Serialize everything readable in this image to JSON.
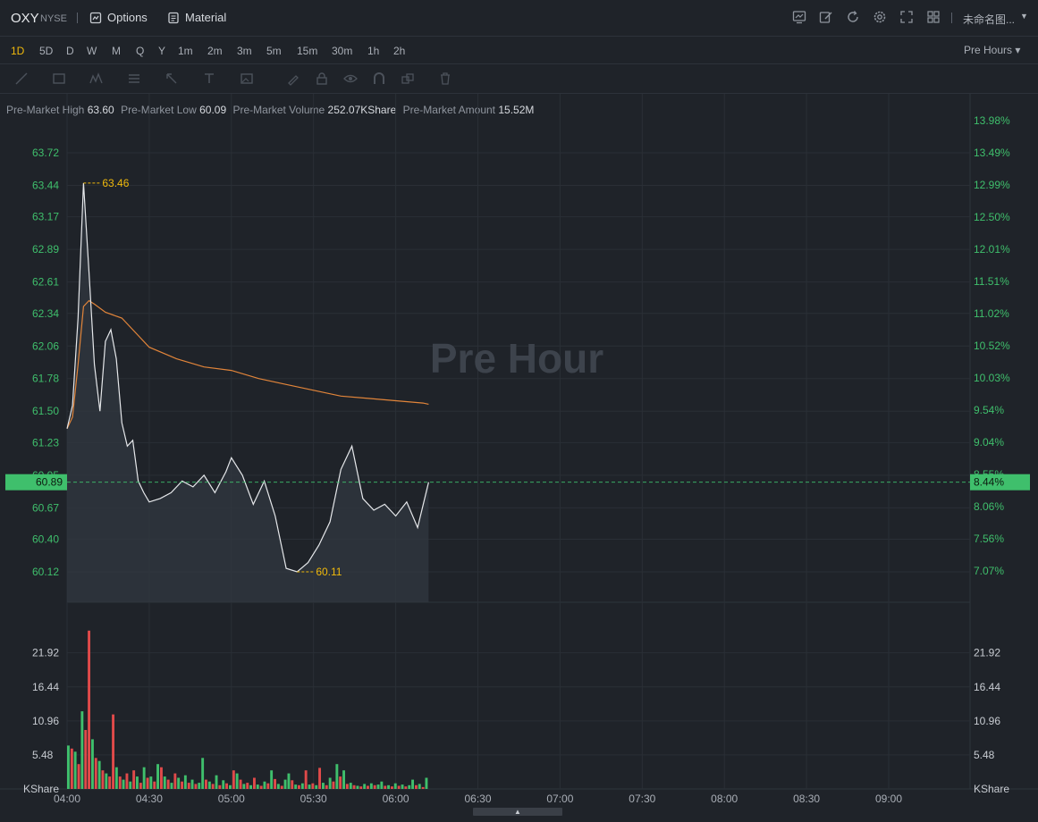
{
  "header": {
    "symbol": "OXY",
    "exchange": "NYSE",
    "options_label": "Options",
    "material_label": "Material",
    "layout_name": "未命名图..."
  },
  "periods": [
    "1D",
    "5D",
    "D",
    "W",
    "M",
    "Q",
    "Y",
    "1m",
    "2m",
    "3m",
    "5m",
    "15m",
    "30m",
    "1h",
    "2h"
  ],
  "active_period": "1D",
  "session_select": "Pre Hours",
  "info": {
    "high_label": "Pre-Market High",
    "high": "63.60",
    "low_label": "Pre-Market Low",
    "low": "60.09",
    "volume_label": "Pre-Market Volume",
    "volume": "252.07KShare",
    "amount_label": "Pre-Market Amount",
    "amount": "15.52M"
  },
  "watermark": "Pre Hour",
  "colors": {
    "up": "#3fbf6c",
    "down": "#e04a4a",
    "avg": "#e2853a",
    "price": "#e6e8eb",
    "marker": "#f0b90b",
    "bg": "#1f2329"
  },
  "chart_data": {
    "type": "line",
    "x_ticks": [
      "04:00",
      "04:30",
      "05:00",
      "05:30",
      "06:00",
      "06:30",
      "07:00",
      "07:30",
      "08:00",
      "08:30",
      "09:00"
    ],
    "y_ticks": [
      "63.72",
      "63.44",
      "63.17",
      "62.89",
      "62.61",
      "62.34",
      "62.06",
      "61.78",
      "61.50",
      "61.23",
      "60.95",
      "60.67",
      "60.40",
      "60.12"
    ],
    "pct_ticks": [
      "13.98%",
      "13.49%",
      "12.99%",
      "12.50%",
      "12.01%",
      "11.51%",
      "11.02%",
      "10.52%",
      "10.03%",
      "9.54%",
      "9.04%",
      "8.55%",
      "8.06%",
      "7.56%",
      "7.07%"
    ],
    "current_price": "60.89",
    "current_pct": "8.44%",
    "high_marker": "63.46",
    "low_marker": "60.11",
    "price_series": {
      "name": "Price",
      "x": [
        "04:00",
        "04:02",
        "04:04",
        "04:06",
        "04:08",
        "04:10",
        "04:12",
        "04:14",
        "04:16",
        "04:18",
        "04:20",
        "04:22",
        "04:24",
        "04:26",
        "04:28",
        "04:30",
        "04:34",
        "04:38",
        "04:42",
        "04:46",
        "04:50",
        "04:54",
        "04:58",
        "05:00",
        "05:04",
        "05:08",
        "05:12",
        "05:16",
        "05:20",
        "05:24",
        "05:28",
        "05:32",
        "05:36",
        "05:40",
        "05:44",
        "05:48",
        "05:52",
        "05:56",
        "06:00",
        "06:04",
        "06:08",
        "06:12"
      ],
      "y": [
        61.35,
        61.55,
        62.3,
        63.46,
        62.7,
        61.9,
        61.5,
        62.1,
        62.2,
        61.95,
        61.4,
        61.2,
        61.25,
        60.9,
        60.8,
        60.72,
        60.75,
        60.8,
        60.9,
        60.85,
        60.95,
        60.8,
        60.98,
        61.1,
        60.95,
        60.7,
        60.9,
        60.6,
        60.15,
        60.12,
        60.2,
        60.35,
        60.55,
        61.0,
        61.2,
        60.75,
        60.65,
        60.7,
        60.6,
        60.72,
        60.5,
        60.89
      ]
    },
    "avg_series": {
      "name": "Average",
      "x": [
        "04:00",
        "04:02",
        "04:04",
        "04:06",
        "04:08",
        "04:10",
        "04:14",
        "04:20",
        "04:26",
        "04:30",
        "04:40",
        "04:50",
        "05:00",
        "05:10",
        "05:20",
        "05:30",
        "05:40",
        "05:50",
        "06:00",
        "06:10",
        "06:12"
      ],
      "y": [
        61.35,
        61.45,
        61.9,
        62.4,
        62.45,
        62.42,
        62.35,
        62.3,
        62.15,
        62.05,
        61.95,
        61.88,
        61.85,
        61.78,
        61.73,
        61.68,
        61.63,
        61.61,
        61.59,
        61.57,
        61.56
      ]
    },
    "volume_ticks": [
      "21.92",
      "16.44",
      "10.96",
      "5.48"
    ],
    "volume_unit": "KShare",
    "volume_bars": [
      {
        "v": 7.0,
        "c": "up"
      },
      {
        "v": 6.5,
        "c": "down"
      },
      {
        "v": 6.0,
        "c": "up"
      },
      {
        "v": 4.0,
        "c": "down"
      },
      {
        "v": 12.5,
        "c": "up"
      },
      {
        "v": 9.5,
        "c": "down"
      },
      {
        "v": 25.5,
        "c": "down"
      },
      {
        "v": 8.0,
        "c": "up"
      },
      {
        "v": 5.0,
        "c": "down"
      },
      {
        "v": 4.5,
        "c": "up"
      },
      {
        "v": 3.0,
        "c": "down"
      },
      {
        "v": 2.5,
        "c": "up"
      },
      {
        "v": 2.0,
        "c": "down"
      },
      {
        "v": 12.0,
        "c": "down"
      },
      {
        "v": 3.5,
        "c": "up"
      },
      {
        "v": 2.0,
        "c": "down"
      },
      {
        "v": 1.5,
        "c": "up"
      },
      {
        "v": 2.5,
        "c": "down"
      },
      {
        "v": 1.2,
        "c": "up"
      },
      {
        "v": 3.0,
        "c": "down"
      },
      {
        "v": 2.0,
        "c": "up"
      },
      {
        "v": 1.0,
        "c": "down"
      },
      {
        "v": 3.5,
        "c": "up"
      },
      {
        "v": 1.8,
        "c": "down"
      },
      {
        "v": 2.0,
        "c": "up"
      },
      {
        "v": 1.2,
        "c": "down"
      },
      {
        "v": 4.0,
        "c": "up"
      },
      {
        "v": 3.5,
        "c": "down"
      },
      {
        "v": 2.0,
        "c": "up"
      },
      {
        "v": 1.5,
        "c": "down"
      },
      {
        "v": 1.0,
        "c": "up"
      },
      {
        "v": 2.5,
        "c": "down"
      },
      {
        "v": 1.8,
        "c": "up"
      },
      {
        "v": 1.2,
        "c": "down"
      },
      {
        "v": 2.2,
        "c": "up"
      },
      {
        "v": 1.0,
        "c": "down"
      },
      {
        "v": 1.5,
        "c": "up"
      },
      {
        "v": 0.8,
        "c": "down"
      },
      {
        "v": 1.0,
        "c": "up"
      },
      {
        "v": 5.0,
        "c": "up"
      },
      {
        "v": 1.5,
        "c": "down"
      },
      {
        "v": 1.2,
        "c": "up"
      },
      {
        "v": 0.8,
        "c": "down"
      },
      {
        "v": 2.2,
        "c": "up"
      },
      {
        "v": 0.6,
        "c": "down"
      },
      {
        "v": 1.4,
        "c": "up"
      },
      {
        "v": 0.9,
        "c": "down"
      },
      {
        "v": 0.6,
        "c": "up"
      },
      {
        "v": 3.0,
        "c": "down"
      },
      {
        "v": 2.5,
        "c": "up"
      },
      {
        "v": 1.5,
        "c": "down"
      },
      {
        "v": 0.8,
        "c": "up"
      },
      {
        "v": 1.0,
        "c": "down"
      },
      {
        "v": 0.6,
        "c": "up"
      },
      {
        "v": 1.8,
        "c": "down"
      },
      {
        "v": 0.7,
        "c": "up"
      },
      {
        "v": 0.5,
        "c": "down"
      },
      {
        "v": 1.2,
        "c": "up"
      },
      {
        "v": 0.9,
        "c": "down"
      },
      {
        "v": 3.0,
        "c": "up"
      },
      {
        "v": 1.6,
        "c": "down"
      },
      {
        "v": 0.8,
        "c": "up"
      },
      {
        "v": 0.5,
        "c": "down"
      },
      {
        "v": 1.5,
        "c": "up"
      },
      {
        "v": 2.5,
        "c": "up"
      },
      {
        "v": 1.4,
        "c": "down"
      },
      {
        "v": 0.7,
        "c": "up"
      },
      {
        "v": 0.6,
        "c": "down"
      },
      {
        "v": 0.9,
        "c": "up"
      },
      {
        "v": 3.0,
        "c": "down"
      },
      {
        "v": 0.7,
        "c": "up"
      },
      {
        "v": 0.9,
        "c": "down"
      },
      {
        "v": 0.6,
        "c": "up"
      },
      {
        "v": 3.4,
        "c": "down"
      },
      {
        "v": 1.0,
        "c": "up"
      },
      {
        "v": 0.6,
        "c": "down"
      },
      {
        "v": 1.8,
        "c": "up"
      },
      {
        "v": 1.2,
        "c": "down"
      },
      {
        "v": 4.0,
        "c": "up"
      },
      {
        "v": 2.0,
        "c": "down"
      },
      {
        "v": 3.0,
        "c": "up"
      },
      {
        "v": 0.8,
        "c": "down"
      },
      {
        "v": 1.0,
        "c": "up"
      },
      {
        "v": 0.6,
        "c": "down"
      },
      {
        "v": 0.5,
        "c": "up"
      },
      {
        "v": 0.4,
        "c": "down"
      },
      {
        "v": 0.8,
        "c": "up"
      },
      {
        "v": 0.5,
        "c": "down"
      },
      {
        "v": 0.9,
        "c": "up"
      },
      {
        "v": 0.6,
        "c": "down"
      },
      {
        "v": 0.7,
        "c": "up"
      },
      {
        "v": 1.2,
        "c": "up"
      },
      {
        "v": 0.5,
        "c": "down"
      },
      {
        "v": 0.6,
        "c": "up"
      },
      {
        "v": 0.4,
        "c": "down"
      },
      {
        "v": 0.9,
        "c": "up"
      },
      {
        "v": 0.5,
        "c": "down"
      },
      {
        "v": 0.7,
        "c": "up"
      },
      {
        "v": 0.4,
        "c": "down"
      },
      {
        "v": 0.6,
        "c": "up"
      },
      {
        "v": 1.5,
        "c": "up"
      },
      {
        "v": 0.6,
        "c": "down"
      },
      {
        "v": 0.8,
        "c": "up"
      },
      {
        "v": 0.3,
        "c": "down"
      },
      {
        "v": 1.8,
        "c": "up"
      }
    ]
  }
}
